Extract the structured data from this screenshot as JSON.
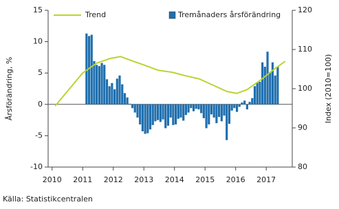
{
  "chart_data": {
    "type": "bar",
    "y_label": "Årsförändring, %",
    "y2_label": "Index (2010=100)",
    "source": "Källa: Statistikcentralen",
    "xlim": [
      2009.87,
      2017.85
    ],
    "xticks": [
      2010,
      2011,
      2012,
      2013,
      2014,
      2015,
      2016,
      2017
    ],
    "ylim": [
      -10,
      15
    ],
    "yticks": [
      -10,
      -5,
      0,
      5,
      10,
      15
    ],
    "y2lim": [
      80,
      120
    ],
    "y2ticks": [
      80,
      90,
      100,
      110,
      120
    ],
    "grid": false,
    "series": [
      {
        "name": "Tremånaders årsförändring",
        "type": "bar",
        "color": "#1f6fae",
        "x": [
          2011.125,
          2011.208,
          2011.292,
          2011.375,
          2011.458,
          2011.542,
          2011.625,
          2011.708,
          2011.792,
          2011.875,
          2011.958,
          2012.042,
          2012.125,
          2012.208,
          2012.292,
          2012.375,
          2012.458,
          2012.542,
          2012.625,
          2012.708,
          2012.792,
          2012.875,
          2012.958,
          2013.042,
          2013.125,
          2013.208,
          2013.292,
          2013.375,
          2013.458,
          2013.542,
          2013.625,
          2013.708,
          2013.792,
          2013.875,
          2013.958,
          2014.042,
          2014.125,
          2014.208,
          2014.292,
          2014.375,
          2014.458,
          2014.542,
          2014.625,
          2014.708,
          2014.792,
          2014.875,
          2014.958,
          2015.042,
          2015.125,
          2015.208,
          2015.292,
          2015.375,
          2015.458,
          2015.542,
          2015.625,
          2015.708,
          2015.792,
          2015.875,
          2015.958,
          2016.042,
          2016.125,
          2016.208,
          2016.292,
          2016.375,
          2016.458,
          2016.542,
          2016.625,
          2016.708,
          2016.792,
          2016.875,
          2016.958,
          2017.042,
          2017.125,
          2017.208,
          2017.292,
          2017.375
        ],
        "values": [
          11.3,
          10.9,
          11.1,
          6.9,
          6.3,
          6.1,
          6.6,
          6.3,
          4.0,
          2.9,
          3.4,
          2.4,
          4.1,
          4.6,
          3.2,
          1.8,
          1.1,
          0.1,
          -0.6,
          -1.3,
          -2.1,
          -3.2,
          -4.3,
          -4.7,
          -4.6,
          -4.0,
          -3.3,
          -2.7,
          -2.5,
          -2.8,
          -2.4,
          -3.8,
          -3.4,
          -2.1,
          -3.3,
          -3.2,
          -2.3,
          -2.1,
          -2.6,
          -1.7,
          -1.3,
          -0.6,
          -1.1,
          -0.7,
          -0.8,
          -1.4,
          -2.2,
          -3.8,
          -3.2,
          -1.6,
          -2.1,
          -3.0,
          -2.0,
          -2.7,
          -1.8,
          -5.7,
          -3.1,
          -1.0,
          -0.6,
          -1.2,
          -0.4,
          0.3,
          0.6,
          -0.8,
          0.4,
          1.0,
          2.9,
          3.5,
          3.6,
          6.7,
          6.0,
          8.4,
          5.1,
          6.7,
          4.6,
          6.0
        ]
      },
      {
        "name": "Trend",
        "type": "line",
        "axis": "y2",
        "color": "#b8d433",
        "x": [
          2010.1,
          2010.55,
          2011.0,
          2011.45,
          2011.9,
          2012.24,
          2012.58,
          2013.02,
          2013.47,
          2013.92,
          2014.36,
          2014.81,
          2015.26,
          2015.71,
          2016.04,
          2016.38,
          2016.83,
          2017.28,
          2017.62
        ],
        "values": [
          95.6,
          99.8,
          104.0,
          106.5,
          107.7,
          108.2,
          107.2,
          106.0,
          104.7,
          104.2,
          103.3,
          102.5,
          100.9,
          99.3,
          98.8,
          99.8,
          102.3,
          105.1,
          107.0
        ]
      }
    ]
  }
}
